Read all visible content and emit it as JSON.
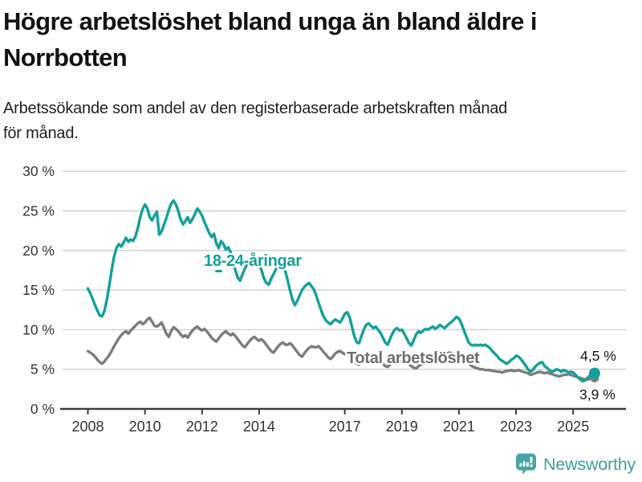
{
  "header": {
    "title_line1": "Högre arbetslöshet bland unga än bland äldre i",
    "title_line2": "Norrbotten",
    "subtitle_line1": "Arbetssökande som andel av den registerbaserade arbetskraften månad",
    "subtitle_line2": "för månad."
  },
  "annotations": {
    "young_series_label": "18-24-åringar",
    "total_series_label": "Total arbetslöshet",
    "young_end_value": "4,5 %",
    "total_end_value": "3,9 %"
  },
  "footer": {
    "brand_name": "Newsworthy",
    "brand_color": "#3FA09C",
    "logo_icon": "bar-chart-speech-bubble-icon"
  },
  "colors": {
    "young": "#12A19A",
    "total": "#7C7C7C",
    "grid": "#CFCFCF",
    "axis": "#3D3D3D",
    "tick_text": "#333333"
  },
  "chart_data": {
    "type": "line",
    "title": "Högre arbetslöshet bland unga än bland äldre i Norrbotten",
    "subtitle": "Arbetssökande som andel av den registerbaserade arbetskraften månad för månad.",
    "x_start": "2008-01",
    "x_end": "2025-10",
    "x_interval": "monthly",
    "ylim": [
      0,
      30
    ],
    "grid": "horizontal",
    "legend": "inline-labels",
    "y_axis": {
      "tick_values": [
        0,
        5,
        10,
        15,
        20,
        25,
        30
      ],
      "tick_labels": [
        "0 %",
        "5 %",
        "10 %",
        "15 %",
        "20 %",
        "25 %",
        "30 %"
      ]
    },
    "x_axis": {
      "tick_values": [
        2008,
        2010,
        2012,
        2014,
        2017,
        2019,
        2021,
        2023,
        2025
      ],
      "tick_labels": [
        "2008",
        "2010",
        "2012",
        "2014",
        "2017",
        "2019",
        "2021",
        "2023",
        "2025"
      ]
    },
    "series": [
      {
        "name": "Total arbetslöshet",
        "key": "total",
        "color": "#7C7C7C",
        "end_value": 3.9,
        "end_label": "3,9 %",
        "values": [
          7.3,
          7.1,
          6.9,
          6.6,
          6.2,
          5.9,
          5.7,
          6.0,
          6.4,
          6.8,
          7.3,
          7.9,
          8.4,
          8.9,
          9.3,
          9.6,
          9.8,
          9.5,
          9.9,
          10.2,
          10.5,
          10.8,
          11.0,
          10.7,
          10.9,
          11.3,
          11.5,
          11.0,
          10.5,
          10.4,
          10.6,
          10.9,
          10.2,
          9.5,
          9.1,
          9.8,
          10.3,
          10.1,
          9.8,
          9.4,
          9.1,
          9.3,
          9.0,
          9.5,
          9.9,
          10.2,
          10.4,
          10.1,
          9.9,
          10.1,
          9.8,
          9.4,
          9.0,
          8.7,
          8.5,
          8.9,
          9.3,
          9.6,
          9.8,
          9.5,
          9.3,
          9.5,
          9.2,
          8.8,
          8.4,
          8.0,
          7.8,
          8.2,
          8.6,
          8.9,
          9.1,
          8.8,
          8.6,
          8.8,
          8.5,
          8.1,
          7.7,
          7.3,
          7.1,
          7.5,
          7.9,
          8.2,
          8.4,
          8.1,
          8.1,
          8.3,
          8.0,
          7.6,
          7.2,
          6.8,
          6.6,
          7.0,
          7.4,
          7.7,
          7.9,
          7.8,
          7.8,
          7.9,
          7.6,
          7.2,
          6.9,
          6.5,
          6.3,
          6.6,
          7.0,
          7.2,
          7.3,
          7.1,
          6.9,
          7.0,
          6.8,
          6.4,
          6.0,
          5.7,
          5.6,
          5.9,
          6.2,
          6.5,
          6.6,
          6.5,
          6.4,
          6.5,
          6.3,
          6.0,
          5.7,
          5.4,
          5.3,
          5.6,
          5.9,
          6.1,
          6.2,
          6.1,
          6.0,
          6.1,
          5.9,
          5.7,
          5.4,
          5.2,
          5.1,
          5.4,
          5.6,
          5.8,
          5.9,
          5.8,
          6.0,
          6.2,
          6.6,
          7.0,
          7.2,
          7.1,
          6.9,
          7.0,
          7.1,
          7.0,
          6.9,
          6.8,
          6.7,
          6.6,
          6.4,
          6.1,
          5.8,
          5.5,
          5.3,
          5.2,
          5.1,
          5.0,
          5.0,
          4.9,
          4.9,
          4.9,
          4.8,
          4.8,
          4.7,
          4.7,
          4.6,
          4.7,
          4.8,
          4.8,
          4.9,
          4.8,
          4.8,
          4.9,
          4.8,
          4.7,
          4.6,
          4.5,
          4.3,
          4.4,
          4.5,
          4.6,
          4.7,
          4.6,
          4.5,
          4.6,
          4.5,
          4.4,
          4.3,
          4.2,
          4.1,
          4.2,
          4.3,
          4.3,
          4.4,
          4.3,
          4.2,
          4.1,
          4.0,
          3.9,
          3.8,
          3.7,
          3.7,
          3.8,
          3.9,
          3.9
        ]
      },
      {
        "name": "18-24-åringar",
        "key": "young",
        "color": "#12A19A",
        "end_value": 4.5,
        "end_label": "4,5 %",
        "values": [
          15.2,
          14.6,
          13.9,
          13.1,
          12.4,
          11.8,
          11.7,
          12.4,
          13.8,
          15.6,
          17.5,
          19.2,
          20.3,
          20.8,
          20.5,
          21.0,
          21.6,
          21.1,
          21.4,
          21.2,
          21.8,
          22.8,
          24.2,
          25.2,
          25.8,
          25.3,
          24.2,
          23.8,
          24.4,
          24.9,
          22.0,
          22.4,
          23.3,
          24.1,
          25.1,
          25.9,
          26.3,
          25.8,
          25.0,
          23.9,
          23.3,
          23.7,
          24.2,
          23.5,
          24.0,
          24.6,
          25.3,
          24.9,
          24.4,
          23.6,
          22.9,
          22.2,
          21.7,
          22.1,
          20.9,
          20.3,
          21.2,
          20.8,
          20.1,
          20.4,
          19.8,
          18.8,
          17.5,
          16.6,
          16.2,
          17.0,
          17.7,
          18.3,
          18.7,
          19.0,
          19.2,
          18.9,
          18.4,
          17.5,
          16.5,
          15.9,
          15.7,
          16.4,
          17.0,
          17.6,
          18.0,
          18.2,
          17.9,
          17.4,
          16.2,
          14.9,
          13.8,
          13.1,
          13.6,
          14.3,
          15.0,
          15.4,
          15.7,
          15.9,
          15.5,
          15.1,
          14.3,
          13.4,
          12.5,
          11.7,
          11.2,
          10.9,
          10.7,
          11.0,
          11.3,
          11.1,
          10.9,
          11.4,
          12.0,
          12.2,
          11.6,
          10.4,
          9.2,
          8.4,
          8.3,
          9.2,
          10.0,
          10.6,
          10.8,
          10.5,
          10.2,
          10.4,
          10.0,
          9.6,
          9.0,
          8.4,
          8.1,
          8.8,
          9.5,
          10.0,
          10.2,
          9.9,
          10.0,
          9.5,
          8.9,
          8.3,
          8.0,
          8.7,
          9.4,
          9.8,
          9.6,
          9.9,
          10.1,
          10.0,
          10.2,
          10.4,
          10.1,
          10.3,
          10.6,
          10.4,
          10.2,
          10.5,
          10.8,
          11.0,
          11.3,
          11.6,
          11.4,
          10.8,
          10.0,
          9.2,
          8.4,
          8.1,
          8.0,
          8.1,
          8.0,
          8.1,
          8.0,
          8.1,
          7.9,
          7.7,
          7.3,
          7.0,
          6.7,
          6.3,
          6.1,
          5.9,
          5.7,
          5.9,
          6.2,
          6.4,
          6.7,
          6.6,
          6.3,
          5.9,
          5.5,
          5.0,
          4.7,
          4.9,
          5.3,
          5.6,
          5.8,
          5.9,
          5.4,
          5.2,
          4.9,
          4.7,
          4.8,
          5.0,
          4.9,
          4.7,
          4.9,
          4.8,
          4.6,
          4.7,
          4.6,
          4.3,
          4.0,
          3.7,
          3.5,
          3.6,
          3.9,
          4.2,
          4.4,
          4.5
        ]
      }
    ]
  }
}
